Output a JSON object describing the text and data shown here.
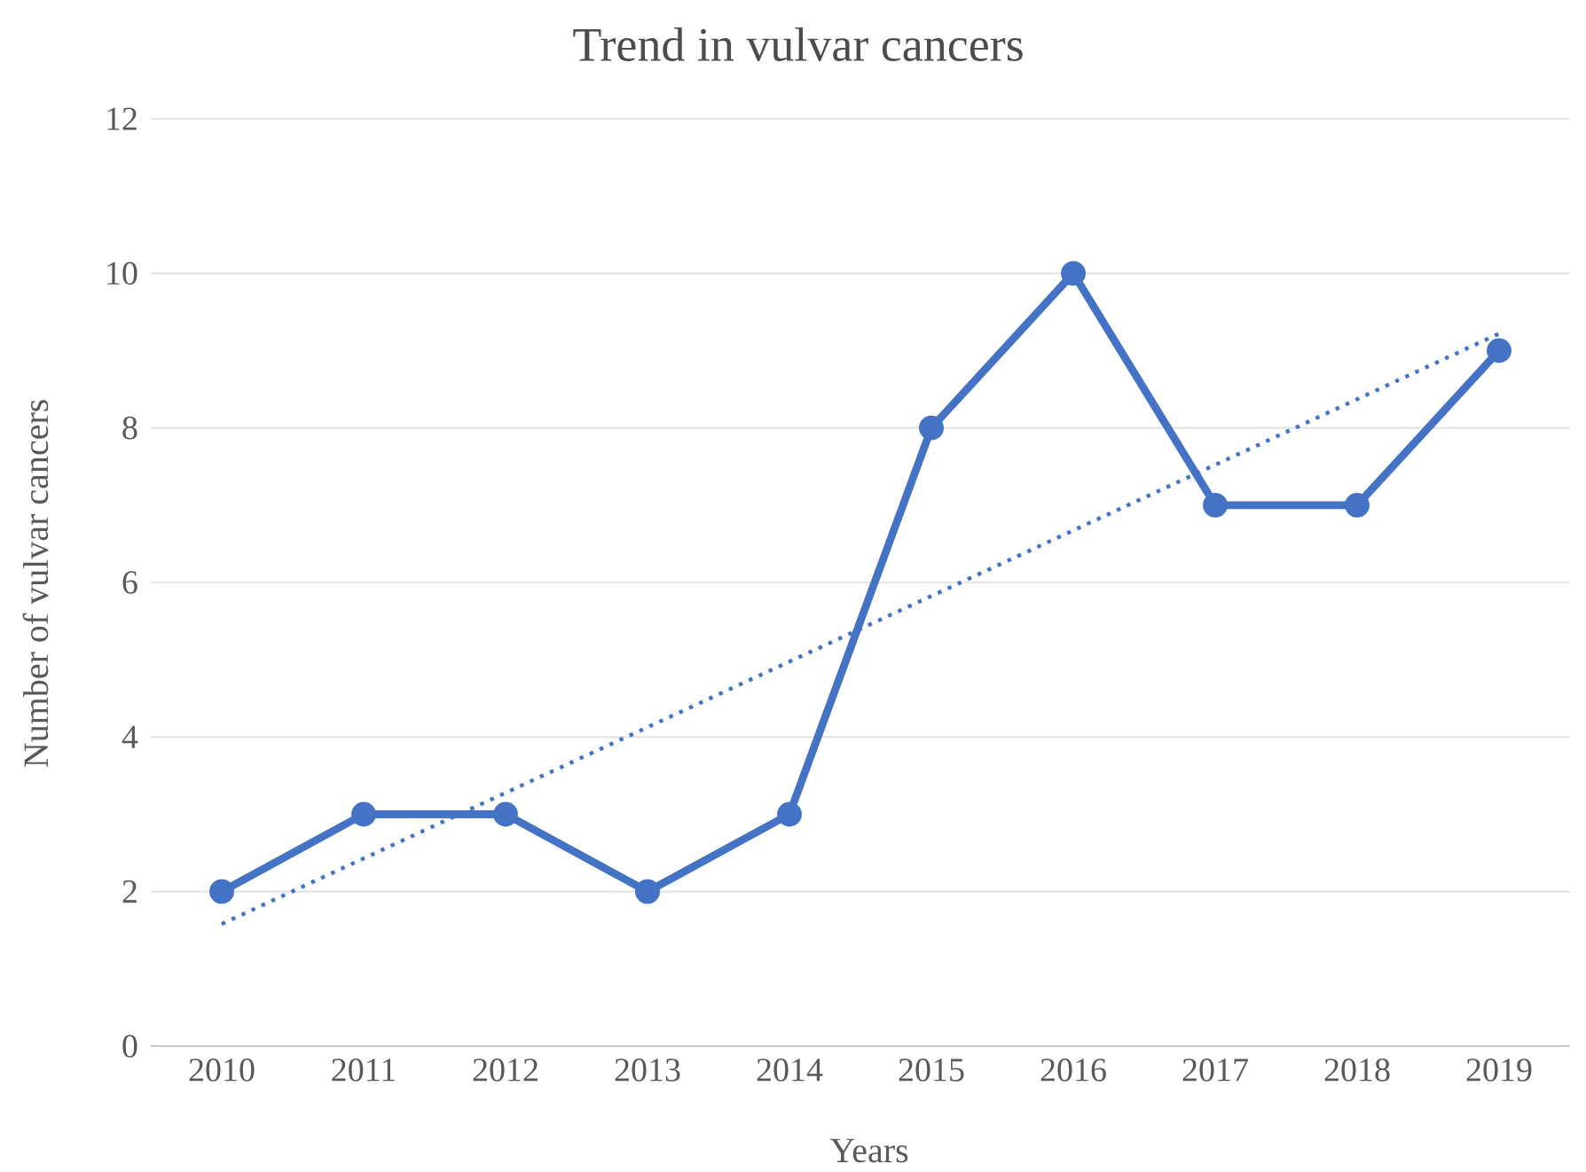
{
  "chart_data": {
    "type": "line",
    "title": "Trend in vulvar cancers",
    "xlabel": "Years",
    "ylabel": "Number of vulvar cancers",
    "x": [
      2010,
      2011,
      2012,
      2013,
      2014,
      2015,
      2016,
      2017,
      2018,
      2019
    ],
    "xlim": [
      2009.5,
      2019.5
    ],
    "xticks": [
      2010,
      2011,
      2012,
      2013,
      2014,
      2015,
      2016,
      2017,
      2018,
      2019
    ],
    "ylim": [
      0,
      12
    ],
    "yticks": [
      0,
      2,
      4,
      6,
      8,
      10,
      12
    ],
    "grid": "y",
    "series": [
      {
        "color": "#4472c4",
        "values": [
          2,
          3,
          3,
          2,
          3,
          8,
          10,
          7,
          7,
          9
        ],
        "marker": "circle",
        "line_style": "solid"
      },
      {
        "type": "line",
        "color": "#4472c4",
        "x": [
          2010,
          2019
        ],
        "values": [
          1.58,
          9.22
        ],
        "marker": "none",
        "line_style": "dotted"
      }
    ]
  }
}
